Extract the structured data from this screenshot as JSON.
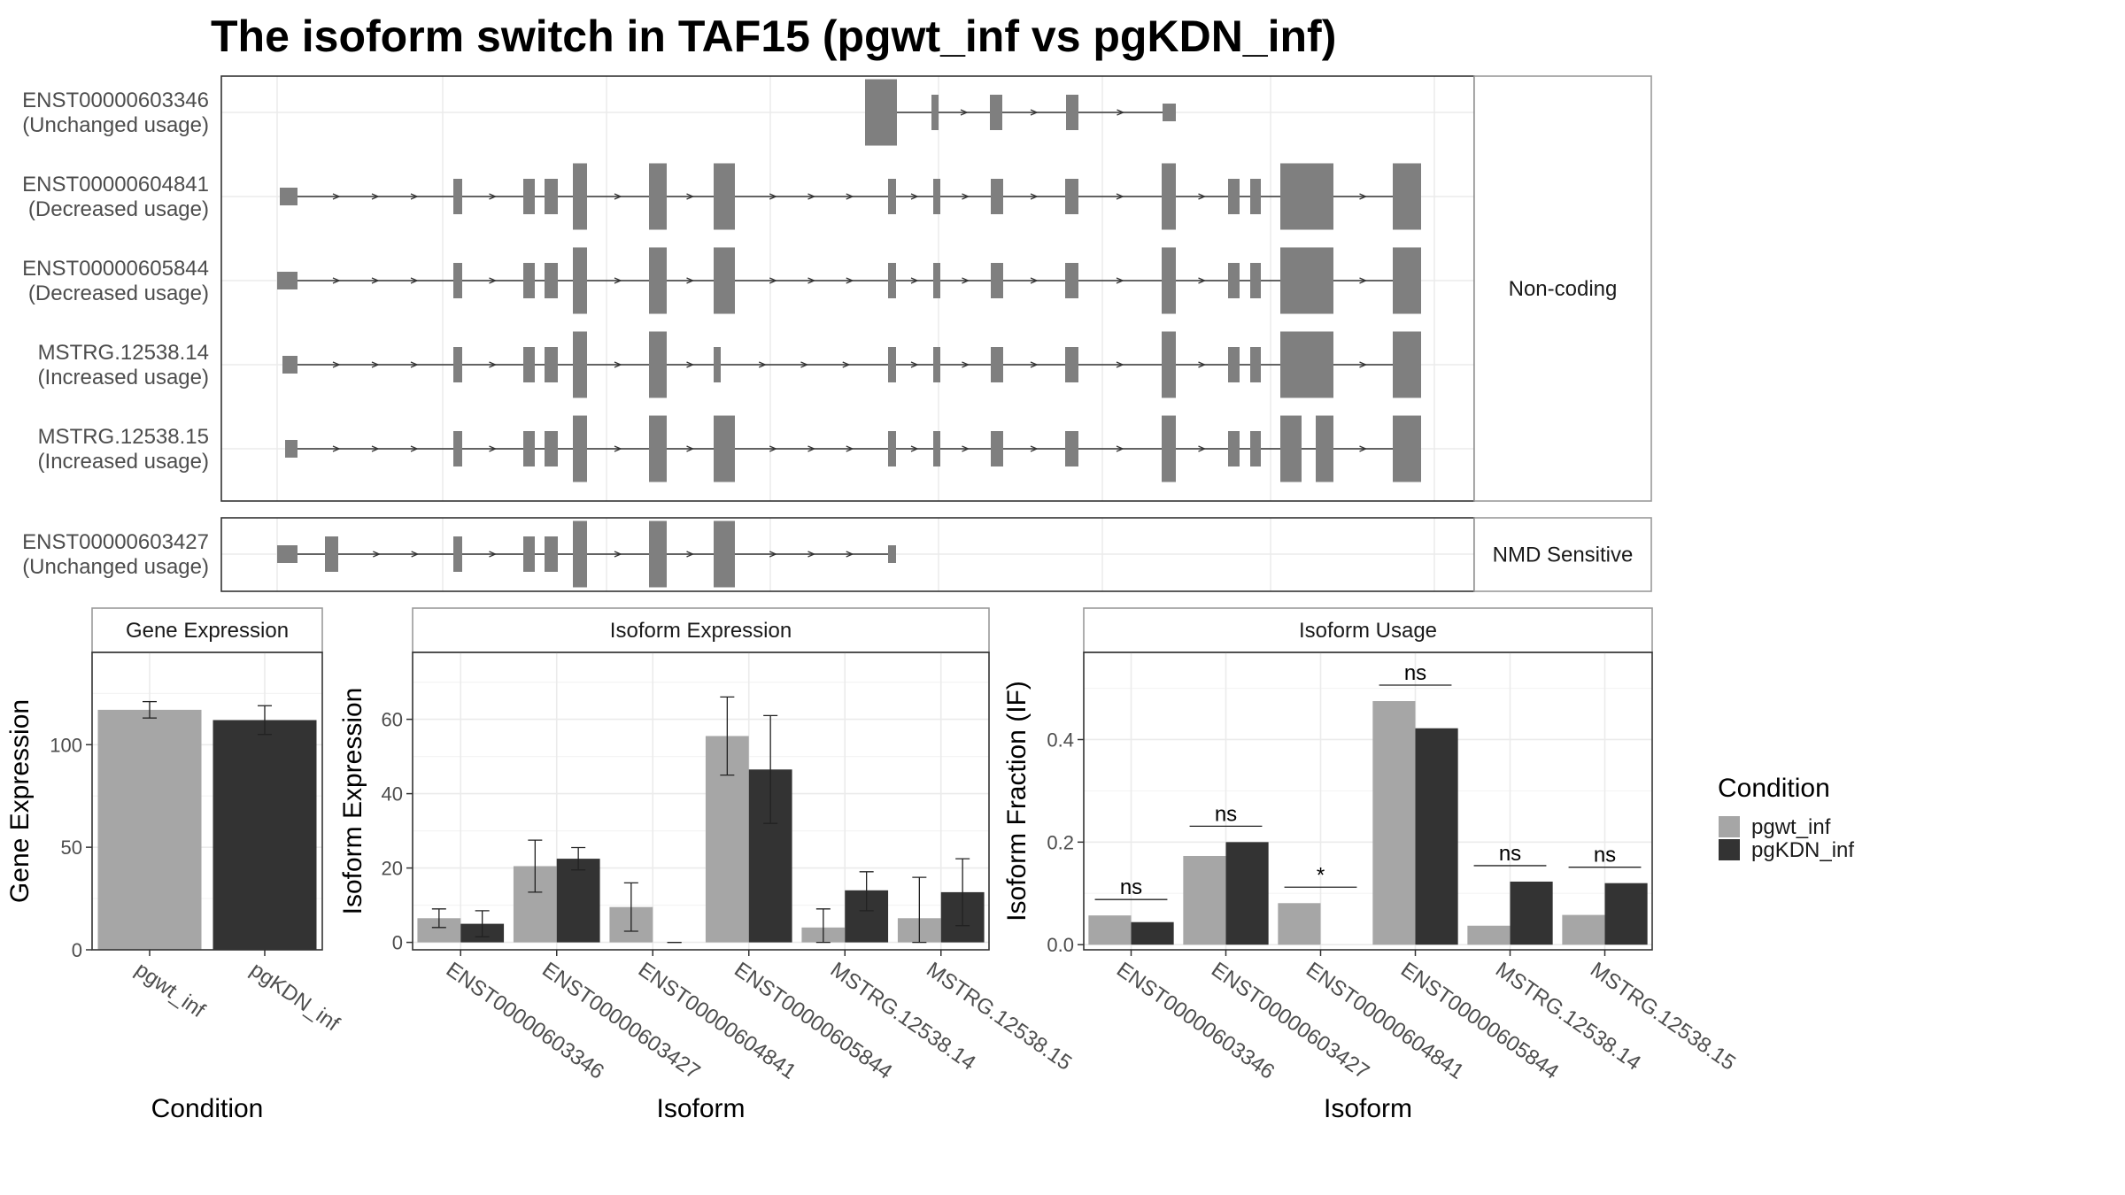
{
  "title": "The isoform switch in TAF15 (pgwt_inf vs pgKDN_inf)",
  "colors": {
    "exon": "#7f7f7f",
    "pgwt_inf": "#a6a6a6",
    "pgKDN_inf": "#333333",
    "grid": "#ebebeb",
    "strip_fill": "#ffffff",
    "panel_border": "#333333",
    "strip_border": "#9a9a9a"
  },
  "transcript_panels": [
    {
      "facet": "Non-coding",
      "transcripts": [
        {
          "id": "ENST00000603346",
          "usage": "(Unchanged usage)"
        },
        {
          "id": "ENST00000604841",
          "usage": "(Decreased usage)"
        },
        {
          "id": "ENST00000605844",
          "usage": "(Decreased usage)"
        },
        {
          "id": "MSTRG.12538.14",
          "usage": "(Increased usage)"
        },
        {
          "id": "MSTRG.12538.15",
          "usage": "(Increased usage)"
        }
      ]
    },
    {
      "facet": "NMD Sensitive",
      "transcripts": [
        {
          "id": "ENST00000603427",
          "usage": "(Unchanged usage)"
        }
      ]
    }
  ],
  "legend": {
    "title": "Condition",
    "items": [
      "pgwt_inf",
      "pgKDN_inf"
    ]
  },
  "chart_data": [
    {
      "type": "bar",
      "title": "Gene Expression",
      "xlabel": "Condition",
      "ylabel": "Gene Expression",
      "categories": [
        "pgwt_inf",
        "pgKDN_inf"
      ],
      "values": [
        117,
        112
      ],
      "error": [
        [
          113,
          121
        ],
        [
          105,
          119
        ]
      ],
      "ylim": [
        0,
        145
      ],
      "yticks": [
        0,
        50,
        100
      ],
      "grid": true
    },
    {
      "type": "bar",
      "title": "Isoform Expression",
      "xlabel": "Isoform",
      "ylabel": "Isoform Expression",
      "categories": [
        "ENST00000603346",
        "ENST00000603427",
        "ENST00000604841",
        "ENST00000605844",
        "MSTRG.12538.14",
        "MSTRG.12538.15"
      ],
      "series": [
        {
          "name": "pgwt_inf",
          "values": [
            6.5,
            20.5,
            9.5,
            55.5,
            4.0,
            6.5
          ],
          "error": [
            [
              4.0,
              9.0
            ],
            [
              13.5,
              27.5
            ],
            [
              3.0,
              16.0
            ],
            [
              45.0,
              66.0
            ],
            [
              0.0,
              9.0
            ],
            [
              0.0,
              17.5
            ]
          ]
        },
        {
          "name": "pgKDN_inf",
          "values": [
            5.0,
            22.5,
            0.0,
            46.5,
            14.0,
            13.5
          ],
          "error": [
            [
              1.5,
              8.5
            ],
            [
              19.5,
              25.5
            ],
            [
              0.0,
              0.0
            ],
            [
              32.0,
              61.0
            ],
            [
              8.5,
              19.0
            ],
            [
              4.5,
              22.5
            ]
          ]
        }
      ],
      "ylim": [
        -2,
        78
      ],
      "yticks": [
        0,
        20,
        40,
        60
      ],
      "grid": true
    },
    {
      "type": "bar",
      "title": "Isoform Usage",
      "xlabel": "Isoform",
      "ylabel": "Isoform Fraction (IF)",
      "categories": [
        "ENST00000603346",
        "ENST00000603427",
        "ENST00000604841",
        "ENST00000605844",
        "MSTRG.12538.14",
        "MSTRG.12538.15"
      ],
      "series": [
        {
          "name": "pgwt_inf",
          "values": [
            0.057,
            0.173,
            0.081,
            0.475,
            0.037,
            0.058
          ]
        },
        {
          "name": "pgKDN_inf",
          "values": [
            0.044,
            0.2,
            0.0,
            0.422,
            0.123,
            0.12
          ]
        }
      ],
      "significance": [
        "ns",
        "ns",
        "*",
        "ns",
        "ns",
        "ns"
      ],
      "ylim": [
        -0.01,
        0.57
      ],
      "yticks": [
        0.0,
        0.2,
        0.4
      ],
      "ytick_labels": [
        "0.0",
        "0.2",
        "0.4"
      ],
      "grid": true
    }
  ]
}
